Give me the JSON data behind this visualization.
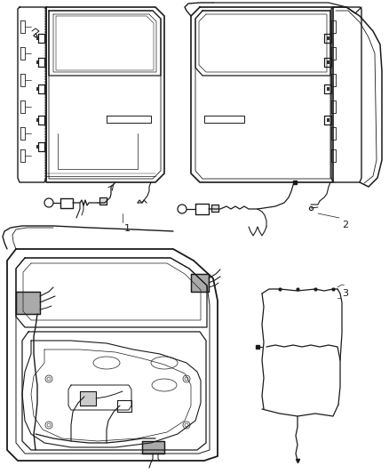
{
  "background_color": "#ffffff",
  "line_color": "#1a1a1a",
  "label_1": "1",
  "label_2": "2",
  "label_3": "3",
  "label_fontsize": 8,
  "fig_width": 4.38,
  "fig_height": 5.33,
  "dpi": 100
}
